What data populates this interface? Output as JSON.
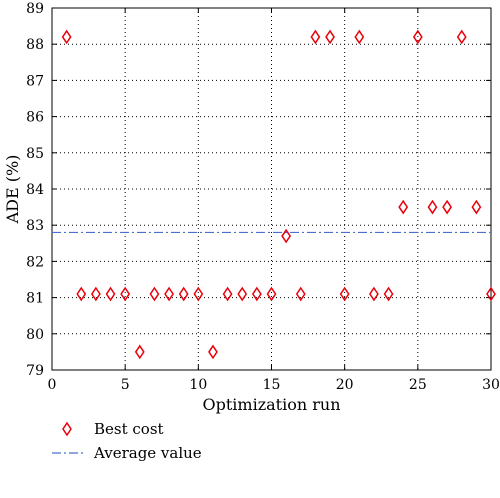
{
  "chart_data": {
    "type": "scatter",
    "xlabel": "Optimization run",
    "ylabel": "ADE (%)",
    "xlim": [
      0,
      30
    ],
    "ylim": [
      79,
      89
    ],
    "xticks": [
      0,
      5,
      10,
      15,
      20,
      25,
      30
    ],
    "yticks": [
      79,
      80,
      81,
      82,
      83,
      84,
      85,
      86,
      87,
      88,
      89
    ],
    "grid": "dotted",
    "legend_position": "bottom-left, below plot",
    "series": [
      {
        "name": "Best cost",
        "marker": "diamond-open",
        "color": "#e8000b",
        "points": [
          {
            "x": 1,
            "y": 88.2
          },
          {
            "x": 2,
            "y": 81.1
          },
          {
            "x": 3,
            "y": 81.1
          },
          {
            "x": 4,
            "y": 81.1
          },
          {
            "x": 5,
            "y": 81.1
          },
          {
            "x": 6,
            "y": 79.5
          },
          {
            "x": 7,
            "y": 81.1
          },
          {
            "x": 8,
            "y": 81.1
          },
          {
            "x": 9,
            "y": 81.1
          },
          {
            "x": 10,
            "y": 81.1
          },
          {
            "x": 11,
            "y": 79.5
          },
          {
            "x": 12,
            "y": 81.1
          },
          {
            "x": 13,
            "y": 81.1
          },
          {
            "x": 14,
            "y": 81.1
          },
          {
            "x": 15,
            "y": 81.1
          },
          {
            "x": 16,
            "y": 82.7
          },
          {
            "x": 17,
            "y": 81.1
          },
          {
            "x": 18,
            "y": 88.2
          },
          {
            "x": 19,
            "y": 88.2
          },
          {
            "x": 20,
            "y": 81.1
          },
          {
            "x": 21,
            "y": 88.2
          },
          {
            "x": 22,
            "y": 81.1
          },
          {
            "x": 23,
            "y": 81.1
          },
          {
            "x": 24,
            "y": 83.5
          },
          {
            "x": 25,
            "y": 88.2
          },
          {
            "x": 26,
            "y": 83.5
          },
          {
            "x": 27,
            "y": 83.5
          },
          {
            "x": 28,
            "y": 88.2
          },
          {
            "x": 29,
            "y": 83.5
          },
          {
            "x": 30,
            "y": 81.1
          }
        ]
      },
      {
        "name": "Average value",
        "line_style": "dash-dot",
        "color": "#4a6fd1",
        "y": 82.8
      }
    ]
  }
}
